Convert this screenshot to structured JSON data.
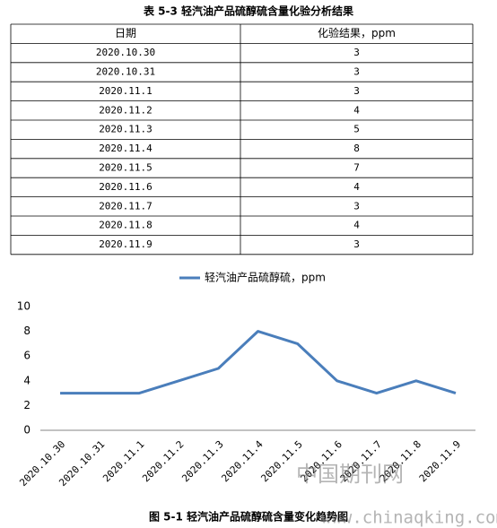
{
  "table": {
    "title": "表 5-3 轻汽油产品硫醇硫含量化验分析结果",
    "header": [
      "日期",
      "化验结果，ppm"
    ],
    "rows": [
      [
        "2020.10.30",
        3
      ],
      [
        "2020.10.31",
        3
      ],
      [
        "2020.11.1",
        3
      ],
      [
        "2020.11.2",
        4
      ],
      [
        "2020.11.3",
        5
      ],
      [
        "2020.11.4",
        8
      ],
      [
        "2020.11.5",
        7
      ],
      [
        "2020.11.6",
        4
      ],
      [
        "2020.11.7",
        3
      ],
      [
        "2020.11.8",
        4
      ],
      [
        "2020.11.9",
        3
      ]
    ]
  },
  "chart_data": {
    "type": "line",
    "categories": [
      "2020.10.30",
      "2020.10.31",
      "2020.11.1",
      "2020.11.2",
      "2020.11.3",
      "2020.11.4",
      "2020.11.5",
      "2020.11.6",
      "2020.11.7",
      "2020.11.8",
      "2020.11.9"
    ],
    "series": [
      {
        "name": "轻汽油产品硫醇硫，ppm",
        "color": "#4a7ebb",
        "values": [
          3,
          3,
          3,
          4,
          5,
          8,
          7,
          4,
          3,
          4,
          3
        ]
      }
    ],
    "ylim": [
      0,
      10
    ],
    "yticks": [
      0,
      2,
      4,
      6,
      8,
      10
    ],
    "grid": false,
    "legend": "top"
  },
  "caption": "图 5-1 轻汽油产品硫醇硫含量变化趋势图",
  "watermark": [
    "中国期刊网",
    "www.chinaqking.com"
  ]
}
